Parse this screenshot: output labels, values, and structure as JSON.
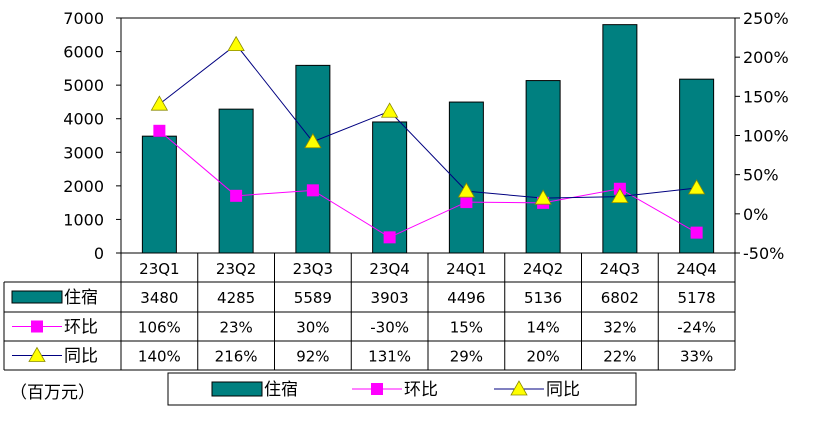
{
  "chart_data": {
    "type": "bar",
    "categories": [
      "23Q1",
      "23Q2",
      "23Q3",
      "23Q4",
      "24Q1",
      "24Q2",
      "24Q3",
      "24Q4"
    ],
    "series": [
      {
        "name": "住宿",
        "kind": "bar",
        "axis": "left",
        "color": "#008080",
        "values": [
          3480,
          4285,
          5589,
          3903,
          4496,
          5136,
          6802,
          5178
        ],
        "labels": [
          "3480",
          "4285",
          "5589",
          "3903",
          "4496",
          "5136",
          "6802",
          "5178"
        ]
      },
      {
        "name": "环比",
        "kind": "line",
        "axis": "right",
        "color": "#ff00ff",
        "marker": "square",
        "values": [
          1.06,
          0.23,
          0.3,
          -0.3,
          0.15,
          0.14,
          0.32,
          -0.24
        ],
        "labels": [
          "106%",
          "23%",
          "30%",
          "-30%",
          "15%",
          "14%",
          "32%",
          "-24%"
        ]
      },
      {
        "name": "同比",
        "kind": "line",
        "axis": "right",
        "color": "#000080",
        "marker": "triangle",
        "marker_color": "#ffff00",
        "values": [
          1.4,
          2.16,
          0.92,
          1.31,
          0.29,
          0.2,
          0.22,
          0.33
        ],
        "labels": [
          "140%",
          "216%",
          "92%",
          "131%",
          "29%",
          "20%",
          "22%",
          "33%"
        ]
      }
    ],
    "yleft": {
      "ylim": [
        0,
        7000
      ],
      "ticks": [
        0,
        1000,
        2000,
        3000,
        4000,
        5000,
        6000,
        7000
      ],
      "tick_labels": [
        "0",
        "1000",
        "2000",
        "3000",
        "4000",
        "5000",
        "6000",
        "7000"
      ]
    },
    "yright": {
      "ylim": [
        -0.5,
        2.5
      ],
      "ticks": [
        -0.5,
        0,
        0.5,
        1.0,
        1.5,
        2.0,
        2.5
      ],
      "tick_labels": [
        "-50%",
        "0%",
        "50%",
        "100%",
        "150%",
        "200%",
        "250%"
      ]
    },
    "unit_label": "（百万元）",
    "grid": false,
    "data_table": true,
    "legend_position": "bottom"
  }
}
